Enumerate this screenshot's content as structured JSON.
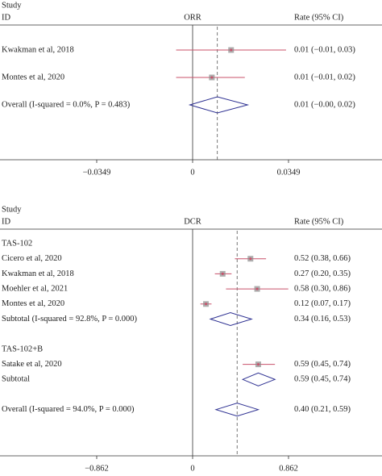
{
  "chart_data": [
    {
      "type": "forest",
      "title": "Study",
      "id_label": "ID",
      "effect_label": "ORR",
      "ci_label": "Rate (95% CI)",
      "studies": [
        {
          "label": "Kwakman et al, 2018",
          "estimate": 0.014,
          "lower": -0.006,
          "upper": 0.034,
          "value_label": "0.01 (−0.01, 0.03)"
        },
        {
          "label": "Montes et al, 2020",
          "estimate": 0.007,
          "lower": -0.006,
          "upper": 0.019,
          "value_label": "0.01 (−0.01, 0.02)"
        }
      ],
      "overall": {
        "label": "Overall (I-squared = 0.0%, P = 0.483)",
        "estimate": 0.009,
        "lower": -0.001,
        "upper": 0.02,
        "value_label": "0.01 (−0.00, 0.02)"
      },
      "xlim": [
        -0.0349,
        0.0349
      ],
      "xticks": [
        {
          "value": -0.0349,
          "label": "−0.0349"
        },
        0,
        0.0349
      ],
      "ci_color": "#c8506a",
      "marker_color": "#8a8a8a",
      "diamond_color": "#2e3192"
    },
    {
      "type": "forest",
      "title": "Study",
      "id_label": "ID",
      "effect_label": "DCR",
      "ci_label": "Rate (95% CI)",
      "groups": [
        {
          "name": "TAS-102",
          "studies": [
            {
              "label": "Cicero et al, 2020",
              "estimate": 0.52,
              "lower": 0.38,
              "upper": 0.66,
              "value_label": "0.52 (0.38, 0.66)"
            },
            {
              "label": "Kwakman et al, 2018",
              "estimate": 0.27,
              "lower": 0.2,
              "upper": 0.35,
              "value_label": "0.27 (0.20, 0.35)"
            },
            {
              "label": "Moehler et al, 2021",
              "estimate": 0.58,
              "lower": 0.3,
              "upper": 0.86,
              "value_label": "0.58 (0.30, 0.86)"
            },
            {
              "label": "Montes et al, 2020",
              "estimate": 0.12,
              "lower": 0.07,
              "upper": 0.17,
              "value_label": "0.12 (0.07, 0.17)"
            }
          ],
          "subtotal": {
            "label": "Subtotal (I-squared = 92.8%, P = 0.000)",
            "estimate": 0.34,
            "lower": 0.16,
            "upper": 0.53,
            "value_label": "0.34 (0.16, 0.53)"
          }
        },
        {
          "name": "TAS-102+B",
          "studies": [
            {
              "label": "Satake et al, 2020",
              "estimate": 0.59,
              "lower": 0.45,
              "upper": 0.74,
              "value_label": "0.59 (0.45, 0.74)"
            }
          ],
          "subtotal": {
            "label": "Subtotal",
            "estimate": 0.59,
            "lower": 0.45,
            "upper": 0.74,
            "value_label": "0.59 (0.45, 0.74)"
          }
        }
      ],
      "overall": {
        "label": "Overall (I-squared = 94.0%, P = 0.000)",
        "estimate": 0.4,
        "lower": 0.21,
        "upper": 0.59,
        "value_label": "0.40 (0.21, 0.59)"
      },
      "xlim": [
        -0.862,
        0.862
      ],
      "xticks": [
        {
          "value": -0.862,
          "label": "−0.862"
        },
        0,
        0.862
      ],
      "ci_color": "#c8506a",
      "marker_color": "#8a8a8a",
      "diamond_color": "#2e3192"
    }
  ]
}
